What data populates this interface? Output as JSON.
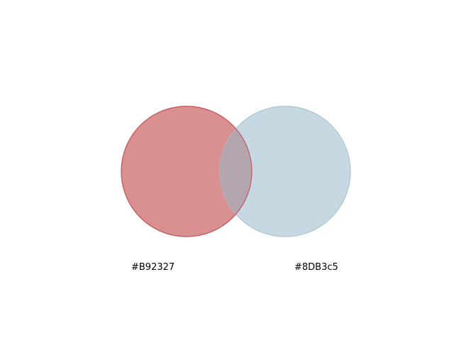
{
  "diagram": {
    "type": "venn",
    "circles": [
      {
        "label": "#B92327",
        "color": "#B92327",
        "fill_color": "#D99090",
        "stroke_color": "#C75A5E"
      },
      {
        "label": "#8DB3c5",
        "color": "#8DB3c5",
        "fill_color": "#C6D8E2",
        "stroke_color": "#A9C5D3"
      }
    ],
    "overlap_color": "#B2A5AE"
  }
}
